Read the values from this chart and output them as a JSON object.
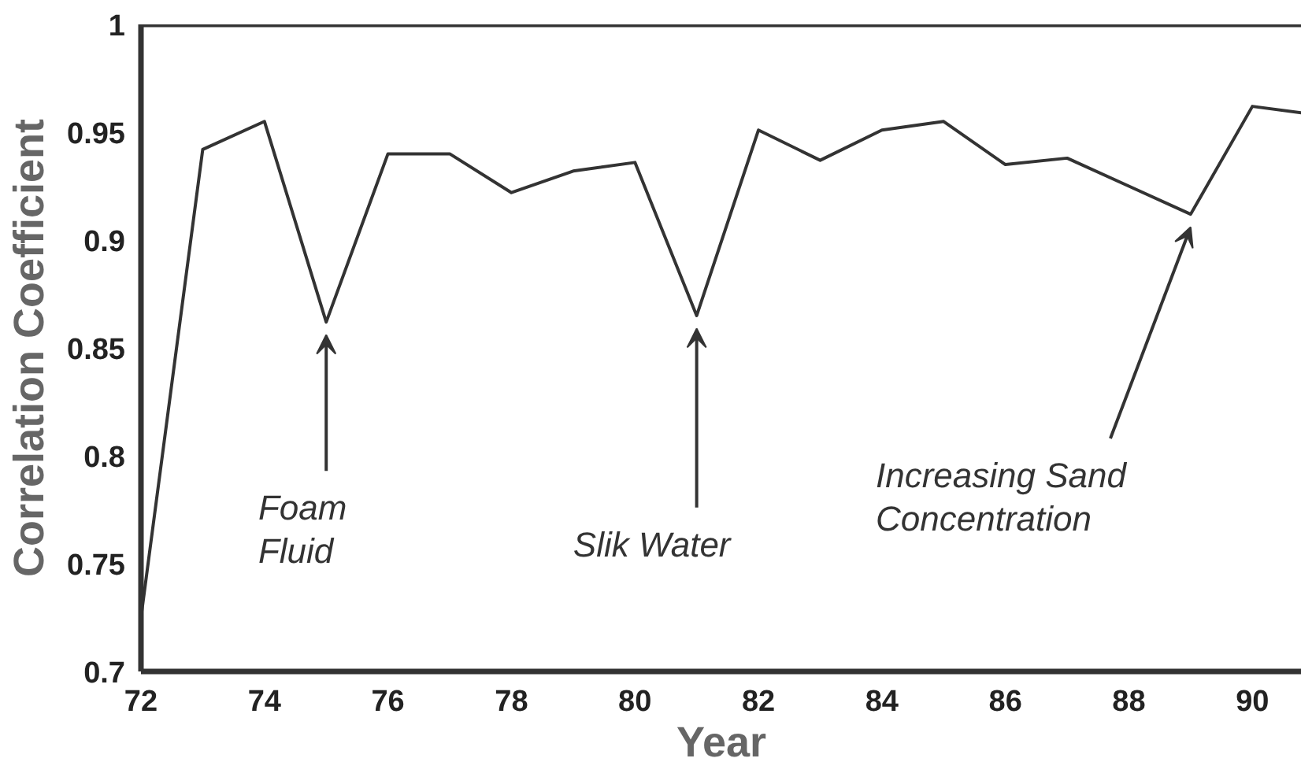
{
  "chart_data": {
    "type": "line",
    "xlabel": "Year",
    "ylabel": "Correlation Coefficient",
    "x": [
      72,
      73,
      74,
      75,
      76,
      77,
      78,
      79,
      80,
      81,
      82,
      83,
      84,
      85,
      86,
      87,
      88,
      89,
      90,
      90.8
    ],
    "series": [
      {
        "color": "#333333",
        "values": [
          0.725,
          0.942,
          0.955,
          0.862,
          0.94,
          0.94,
          0.922,
          0.932,
          0.936,
          0.865,
          0.951,
          0.937,
          0.951,
          0.955,
          0.935,
          0.938,
          0.925,
          0.912,
          0.962,
          0.959
        ]
      }
    ],
    "xlim": [
      72,
      90.8
    ],
    "ylim": [
      0.7,
      1
    ],
    "xticks": [
      72,
      74,
      76,
      78,
      80,
      82,
      84,
      86,
      88,
      90
    ],
    "yticks": [
      0.7,
      0.75,
      0.8,
      0.85,
      0.9,
      0.95,
      1
    ],
    "grid": false,
    "marker": "none",
    "line_style": "solid",
    "annotations": [
      {
        "text": "Foam\nFluid",
        "x": 75,
        "y": 0.862
      },
      {
        "text": "Slik Water",
        "x": 81,
        "y": 0.865
      },
      {
        "text": "Increasing Sand\nConcentration",
        "x": 89,
        "y": 0.912
      }
    ]
  }
}
